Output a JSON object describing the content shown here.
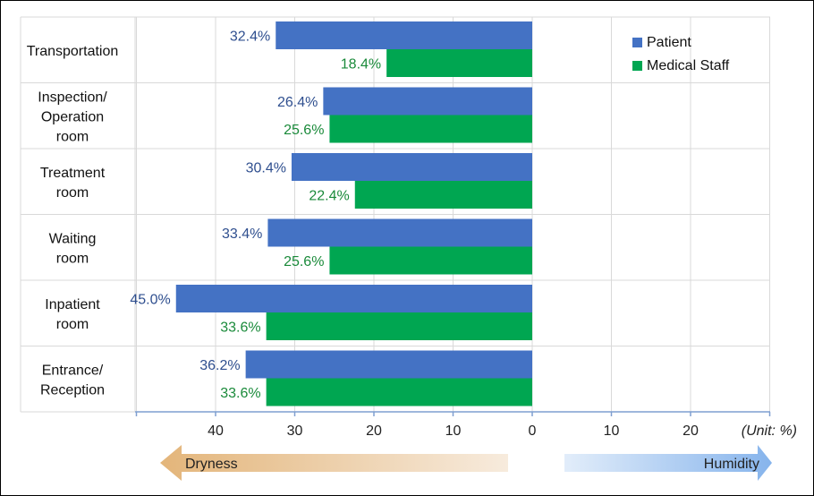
{
  "chart_data": {
    "type": "bar",
    "orientation": "horizontal",
    "categories": [
      "Transportation",
      "Inspection/\nOperation\nroom",
      "Treatment\nroom",
      "Waiting\nroom",
      "Inpatient\nroom",
      "Entrance/\nReception"
    ],
    "series": [
      {
        "name": "Patient",
        "color": "#4472C4",
        "label_color": "#2F4F8F",
        "values": [
          32.4,
          26.4,
          30.4,
          33.4,
          45.0,
          36.2
        ],
        "labels": [
          "32.4%",
          "26.4%",
          "30.4%",
          "33.4%",
          "45.0%",
          "36.2%"
        ]
      },
      {
        "name": "Medical Staff",
        "color": "#00A651",
        "label_color": "#1A8A3A",
        "values": [
          18.4,
          25.6,
          22.4,
          25.6,
          33.6,
          33.6
        ],
        "labels": [
          "18.4%",
          "25.6%",
          "22.4%",
          "25.6%",
          "33.6%",
          "33.6%"
        ]
      }
    ],
    "x_ticks": [
      "40",
      "30",
      "20",
      "10",
      "0",
      "10",
      "20"
    ],
    "x_tick_values": [
      40,
      30,
      20,
      10,
      0,
      -10,
      -20
    ],
    "unit_label": "(Unit: %)",
    "dryness_label": "Dryness",
    "humidity_label": "Humidity",
    "xlim": [
      50,
      -30
    ],
    "grid": true,
    "legend_position": "top-right"
  }
}
